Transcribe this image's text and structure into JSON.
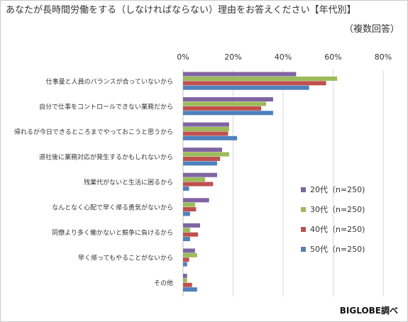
{
  "chart_data": {
    "type": "bar",
    "orientation": "horizontal",
    "title": "あなたが長時間労働をする（しなければならない）理由をお答えください【年代別】",
    "subtitle": "（複数回答）",
    "x_ticks": [
      "0%",
      "20%",
      "40%",
      "60%",
      "80%"
    ],
    "xlim": [
      0,
      80
    ],
    "grid": true,
    "legend_position": "right",
    "categories": [
      "仕事量と人員のバランスが合っていないから",
      "自分で仕事をコントロールできない業務だから",
      "帰れるが今日できるところまでやっておこうと思うから",
      "退社後に業務対応が発生するかもしれないから",
      "残業代がないと生活に困るから",
      "なんとなく心配で早く帰る勇気がないから",
      "同僚より多く働かないと競争に負けるから",
      "早く帰ってもやることがないから",
      "その他"
    ],
    "series": [
      {
        "name": "20代（n=250)",
        "color": "#8064a2",
        "values": [
          45.2,
          36.0,
          18.4,
          15.6,
          13.6,
          10.4,
          6.8,
          4.8,
          1.6
        ]
      },
      {
        "name": "30代（n=250)",
        "color": "#9bbb59",
        "values": [
          61.6,
          33.2,
          18.4,
          18.4,
          8.8,
          4.8,
          2.8,
          5.6,
          1.6
        ]
      },
      {
        "name": "40代（n=250)",
        "color": "#c0504d",
        "values": [
          57.2,
          31.2,
          18.0,
          14.8,
          12.0,
          5.2,
          6.0,
          2.4,
          3.6
        ]
      },
      {
        "name": "50代（n=250)",
        "color": "#4f81bd",
        "values": [
          50.4,
          36.0,
          21.6,
          13.6,
          2.4,
          2.8,
          2.8,
          1.6,
          5.6
        ]
      }
    ]
  },
  "footer": {
    "source": "BIGLOBE調べ"
  }
}
